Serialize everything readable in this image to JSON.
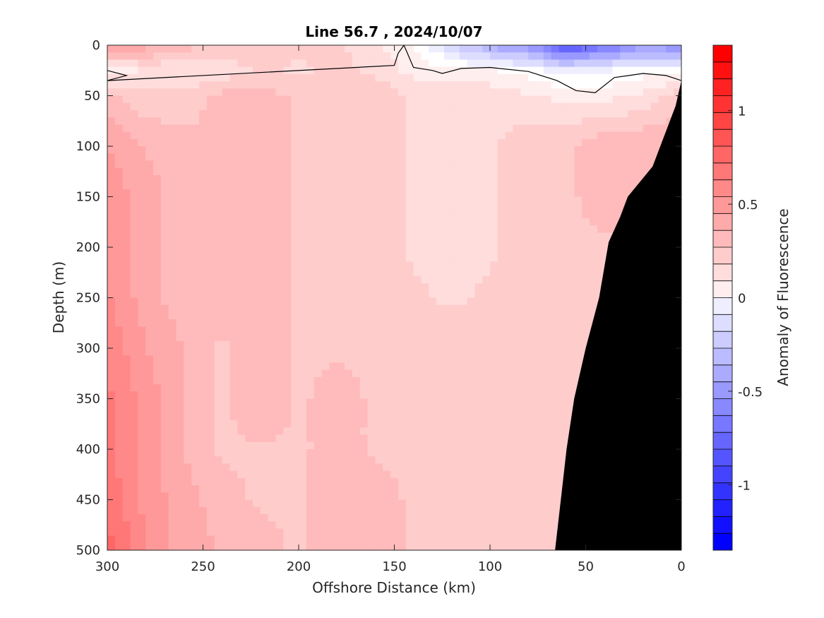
{
  "chart_data": {
    "type": "heatmap",
    "title": "Line 56.7 , 2024/10/07",
    "xlabel": "Offshore Distance (km)",
    "ylabel": "Depth (m)",
    "xlim": [
      300,
      0
    ],
    "ylim": [
      0,
      500
    ],
    "x_reversed": true,
    "y_reversed": true,
    "xticks": [
      300,
      250,
      200,
      150,
      100,
      50,
      0
    ],
    "yticks": [
      0,
      50,
      100,
      150,
      200,
      250,
      300,
      350,
      400,
      450,
      500
    ],
    "colorbar": {
      "label": "Anomaly of Fluorescence",
      "range": [
        -1.35,
        1.35
      ],
      "step": 0.09,
      "ticks": [
        1,
        0.5,
        0,
        -0.5,
        -1
      ],
      "low_color": "#0000ff",
      "mid_color": "#ffffff",
      "high_color": "#ff0000"
    },
    "zero_contour": [
      [
        300,
        25
      ],
      [
        290,
        30
      ],
      [
        300,
        35
      ],
      [
        150,
        20
      ],
      [
        148,
        8
      ],
      [
        145,
        0
      ],
      [
        140,
        22
      ],
      [
        130,
        25
      ],
      [
        125,
        28
      ],
      [
        115,
        23
      ],
      [
        100,
        22
      ],
      [
        80,
        26
      ],
      [
        65,
        35
      ],
      [
        55,
        45
      ],
      [
        45,
        47
      ],
      [
        35,
        32
      ],
      [
        20,
        28
      ],
      [
        8,
        30
      ],
      [
        0,
        35
      ]
    ],
    "field": {
      "x": [
        300,
        280,
        260,
        240,
        220,
        200,
        180,
        160,
        140,
        120,
        100,
        80,
        60,
        40,
        20,
        0
      ],
      "y": [
        0,
        25,
        50,
        100,
        150,
        200,
        250,
        300,
        350,
        400,
        450,
        500
      ],
      "values": [
        [
          0.55,
          0.45,
          0.35,
          0.3,
          0.3,
          0.25,
          0.25,
          0.15,
          0.05,
          -0.2,
          -0.45,
          -0.55,
          -0.95,
          -0.75,
          -0.55,
          -0.6
        ],
        [
          0.05,
          0.15,
          0.15,
          0.15,
          0.25,
          0.2,
          0.25,
          0.2,
          0.1,
          0.05,
          0.05,
          0.0,
          -0.1,
          -0.05,
          0.0,
          0.0
        ],
        [
          0.35,
          0.25,
          0.25,
          0.35,
          0.35,
          0.3,
          0.3,
          0.3,
          0.2,
          0.2,
          0.2,
          0.15,
          0.1,
          0.1,
          0.15,
          0.3
        ],
        [
          0.5,
          0.4,
          0.35,
          0.35,
          0.4,
          0.3,
          0.3,
          0.3,
          0.2,
          0.2,
          0.2,
          0.3,
          0.3,
          0.4,
          0.4,
          0.4
        ],
        [
          0.55,
          0.45,
          0.35,
          0.35,
          0.4,
          0.3,
          0.3,
          0.3,
          0.2,
          0.2,
          0.2,
          0.3,
          0.3,
          0.35,
          0.35,
          0.35
        ],
        [
          0.55,
          0.45,
          0.35,
          0.35,
          0.4,
          0.3,
          0.3,
          0.3,
          0.2,
          0.2,
          0.2,
          0.3,
          0.3,
          0.3,
          0.3,
          0.3
        ],
        [
          0.6,
          0.45,
          0.35,
          0.35,
          0.4,
          0.3,
          0.3,
          0.3,
          0.25,
          0.2,
          0.25,
          0.3,
          0.3,
          0.3,
          0.3,
          0.3
        ],
        [
          0.65,
          0.5,
          0.4,
          0.3,
          0.4,
          0.3,
          0.3,
          0.3,
          0.3,
          0.3,
          0.3,
          0.3,
          0.3,
          0.3,
          0.3,
          0.3
        ],
        [
          0.7,
          0.55,
          0.4,
          0.3,
          0.4,
          0.3,
          0.35,
          0.3,
          0.3,
          0.3,
          0.3,
          0.3,
          0.3,
          0.3,
          0.3,
          0.3
        ],
        [
          0.7,
          0.55,
          0.4,
          0.3,
          0.3,
          0.3,
          0.35,
          0.3,
          0.3,
          0.3,
          0.3,
          0.3,
          0.3,
          0.3,
          0.3,
          0.3
        ],
        [
          0.75,
          0.55,
          0.45,
          0.35,
          0.3,
          0.3,
          0.4,
          0.35,
          0.3,
          0.3,
          0.3,
          0.3,
          0.3,
          0.3,
          0.3,
          0.3
        ],
        [
          0.8,
          0.6,
          0.45,
          0.4,
          0.35,
          0.3,
          0.4,
          0.4,
          0.3,
          0.3,
          0.3,
          0.3,
          0.3,
          0.25,
          0.3,
          0.3
        ]
      ]
    },
    "bathymetry_mask": {
      "color": "#000000",
      "boundary": [
        [
          0,
          35
        ],
        [
          3,
          60
        ],
        [
          8,
          85
        ],
        [
          15,
          120
        ],
        [
          28,
          150
        ],
        [
          32,
          170
        ],
        [
          38,
          195
        ],
        [
          43,
          250
        ],
        [
          50,
          300
        ],
        [
          56,
          350
        ],
        [
          60,
          400
        ],
        [
          63,
          450
        ],
        [
          66,
          500
        ]
      ]
    }
  }
}
